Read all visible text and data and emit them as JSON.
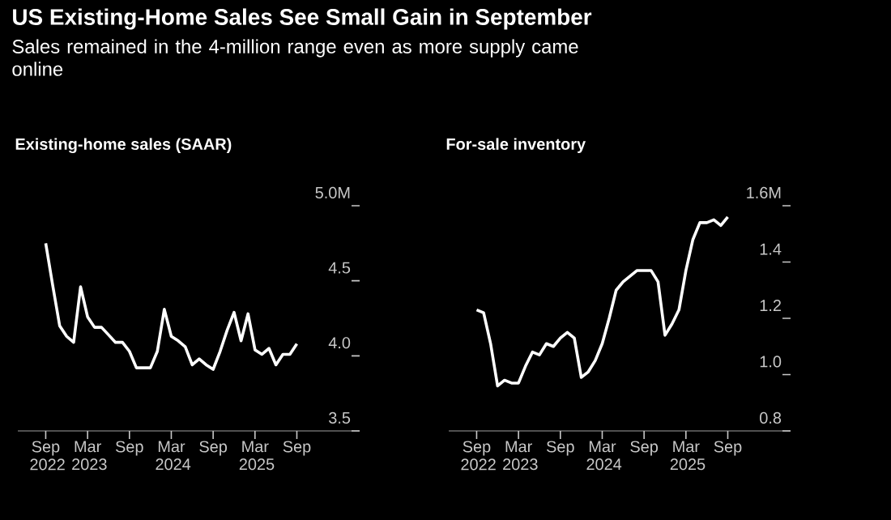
{
  "chart_data": [
    {
      "type": "line",
      "title": "US Existing-Home Sales See Small Gain in September",
      "subtitle": "Sales remained in the 4-million range even as more supply came online",
      "ylabel": "Existing-home sales (SAAR)",
      "x": [
        "2022-09",
        "2022-10",
        "2022-11",
        "2022-12",
        "2023-01",
        "2023-02",
        "2023-03",
        "2023-04",
        "2023-05",
        "2023-06",
        "2023-07",
        "2023-08",
        "2023-09",
        "2023-10",
        "2023-11",
        "2023-12",
        "2024-01",
        "2024-02",
        "2024-03",
        "2024-04",
        "2024-05",
        "2024-06",
        "2024-07",
        "2024-08",
        "2024-09",
        "2024-10",
        "2024-11",
        "2024-12",
        "2025-01",
        "2025-02",
        "2025-03",
        "2025-04",
        "2025-05",
        "2025-06",
        "2025-07",
        "2025-08",
        "2025-09"
      ],
      "values": [
        4.75,
        4.47,
        4.2,
        4.13,
        4.09,
        4.46,
        4.26,
        4.19,
        4.19,
        4.14,
        4.09,
        4.09,
        4.03,
        3.92,
        3.92,
        3.92,
        4.03,
        4.31,
        4.13,
        4.1,
        4.06,
        3.94,
        3.98,
        3.94,
        3.91,
        4.03,
        4.17,
        4.29,
        4.1,
        4.28,
        4.04,
        4.01,
        4.05,
        3.94,
        4.01,
        4.01,
        4.08
      ],
      "color": "#ffffff",
      "xlim": [
        "2022-05",
        "2026-06"
      ],
      "xticks": [
        {
          "value": "2022-09",
          "label": "Sep 2022"
        },
        {
          "value": "2023-03",
          "label": "Mar 2023"
        },
        {
          "value": "2023-09",
          "label": "Sep"
        },
        {
          "value": "2024-03",
          "label": "Mar 2024"
        },
        {
          "value": "2024-09",
          "label": "Sep"
        },
        {
          "value": "2025-03",
          "label": "Mar 2025"
        },
        {
          "value": "2025-09",
          "label": "Sep"
        }
      ],
      "ylim": [
        3.5,
        5.0
      ],
      "yticks": [
        3.5,
        {
          "value": 4,
          "label": "4.0"
        },
        4.5,
        {
          "value": 5,
          "label": "5.0M"
        }
      ]
    },
    {
      "type": "line",
      "ylabel": "For-sale inventory",
      "x": [
        "2022-09",
        "2022-10",
        "2022-11",
        "2022-12",
        "2023-01",
        "2023-02",
        "2023-03",
        "2023-04",
        "2023-05",
        "2023-06",
        "2023-07",
        "2023-08",
        "2023-09",
        "2023-10",
        "2023-11",
        "2023-12",
        "2024-01",
        "2024-02",
        "2024-03",
        "2024-04",
        "2024-05",
        "2024-06",
        "2024-07",
        "2024-08",
        "2024-09",
        "2024-10",
        "2024-11",
        "2024-12",
        "2025-01",
        "2025-02",
        "2025-03",
        "2025-04",
        "2025-05",
        "2025-06",
        "2025-07",
        "2025-08",
        "2025-09"
      ],
      "values": [
        1.23,
        1.22,
        1.11,
        0.96,
        0.98,
        0.97,
        0.97,
        1.03,
        1.08,
        1.07,
        1.11,
        1.1,
        1.13,
        1.15,
        1.13,
        0.99,
        1.01,
        1.05,
        1.11,
        1.2,
        1.3,
        1.33,
        1.35,
        1.37,
        1.37,
        1.37,
        1.33,
        1.14,
        1.18,
        1.23,
        1.37,
        1.48,
        1.54,
        1.54,
        1.55,
        1.53,
        1.56
      ],
      "color": "#ffffff",
      "xlim": [
        "2022-05",
        "2026-06"
      ],
      "xticks": [
        {
          "value": "2022-09",
          "label": "Sep 2022"
        },
        {
          "value": "2023-03",
          "label": "Mar 2023"
        },
        {
          "value": "2023-09",
          "label": "Sep"
        },
        {
          "value": "2024-03",
          "label": "Mar 2024"
        },
        {
          "value": "2024-09",
          "label": "Sep"
        },
        {
          "value": "2025-03",
          "label": "Mar 2025"
        },
        {
          "value": "2025-09",
          "label": "Sep"
        }
      ],
      "ylim": [
        0.8,
        1.6
      ],
      "yticks": [
        0.8,
        {
          "value": 1,
          "label": "1.0"
        },
        1.2,
        1.4,
        {
          "value": 1.6,
          "label": "1.6M"
        }
      ]
    }
  ]
}
